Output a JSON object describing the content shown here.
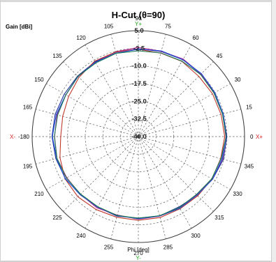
{
  "chart_data": {
    "type": "polar",
    "title": "H-Cut (θ=90)",
    "ylabel": "Gain [dBi]",
    "xlabel": "Phi [deg]",
    "radial_ticks": [
      "5.0",
      "-2.5",
      "-10.0",
      "-17.5",
      "-25.0",
      "-32.5",
      "-40.0"
    ],
    "r_range": [
      -40,
      5
    ],
    "angle_ticks": [
      0,
      15,
      30,
      45,
      60,
      75,
      90,
      105,
      120,
      135,
      150,
      165,
      180,
      195,
      210,
      225,
      240,
      255,
      270,
      285,
      300,
      315,
      330,
      345
    ],
    "angle_labels": {
      "0": "0",
      "90": "90",
      "180": "-180",
      "270": "270"
    },
    "axis_markers": {
      "x_plus": "X+",
      "x_minus": "X-",
      "y_plus": "Y+",
      "y_minus": "Y-"
    },
    "colors": {
      "x_axis": "#d81b1b",
      "y_axis": "#19a319",
      "grid": "#606060"
    },
    "grid": true,
    "phi": [
      0,
      15,
      30,
      45,
      60,
      75,
      90,
      105,
      120,
      135,
      150,
      165,
      180,
      195,
      210,
      225,
      240,
      255,
      270,
      285,
      300,
      315,
      330,
      345,
      360
    ],
    "series": [
      {
        "color": "#1f2f9a",
        "values": [
          -2.5,
          -2.8,
          -2.7,
          -2.5,
          -2.3,
          -2.6,
          -2.7,
          -2.9,
          -3.3,
          -3.6,
          -3.8,
          -3.5,
          -3.4,
          -3.8,
          -4.3,
          -5.1,
          -5.4,
          -5.0,
          -5.4,
          -5.1,
          -5.5,
          -4.8,
          -3.7,
          -2.7,
          -2.5
        ]
      },
      {
        "color": "#b01f8f",
        "values": [
          -2.9,
          -3.0,
          -2.9,
          -2.4,
          -2.0,
          -2.5,
          -2.1,
          -2.7,
          -3.7,
          -3.8,
          -4.6,
          -4.3,
          -4.5,
          -4.3,
          -5.0,
          -5.3,
          -5.0,
          -5.5,
          -4.9,
          -5.0,
          -4.9,
          -5.0,
          -3.8,
          -3.1,
          -2.9
        ]
      },
      {
        "color": "#c0392b",
        "values": [
          -3.4,
          -3.7,
          -3.7,
          -3.8,
          -3.1,
          -3.3,
          -2.9,
          -2.8,
          -3.0,
          -4.4,
          -5.9,
          -6.8,
          -7.1,
          -5.6,
          -4.1,
          -3.8,
          -4.2,
          -4.5,
          -4.4,
          -4.4,
          -4.6,
          -4.4,
          -4.0,
          -3.9,
          -3.4
        ]
      },
      {
        "color": "#1c4fd6",
        "values": [
          -2.8,
          -2.8,
          -2.6,
          -2.2,
          -2.3,
          -2.3,
          -2.9,
          -3.3,
          -3.5,
          -3.9,
          -4.5,
          -4.0,
          -3.6,
          -4.2,
          -4.2,
          -5.2,
          -5.4,
          -5.3,
          -5.1,
          -5.1,
          -4.8,
          -4.8,
          -3.7,
          -3.3,
          -2.8
        ]
      },
      {
        "color": "#1b7a52",
        "values": [
          -2.8,
          -3.1,
          -3.0,
          -2.7,
          -3.0,
          -3.2,
          -3.6,
          -3.4,
          -3.9,
          -3.8,
          -4.5,
          -4.6,
          -4.4,
          -4.3,
          -4.8,
          -5.4,
          -5.6,
          -5.3,
          -5.3,
          -5.2,
          -5.2,
          -5.2,
          -4.1,
          -3.7,
          -2.8
        ]
      }
    ]
  }
}
